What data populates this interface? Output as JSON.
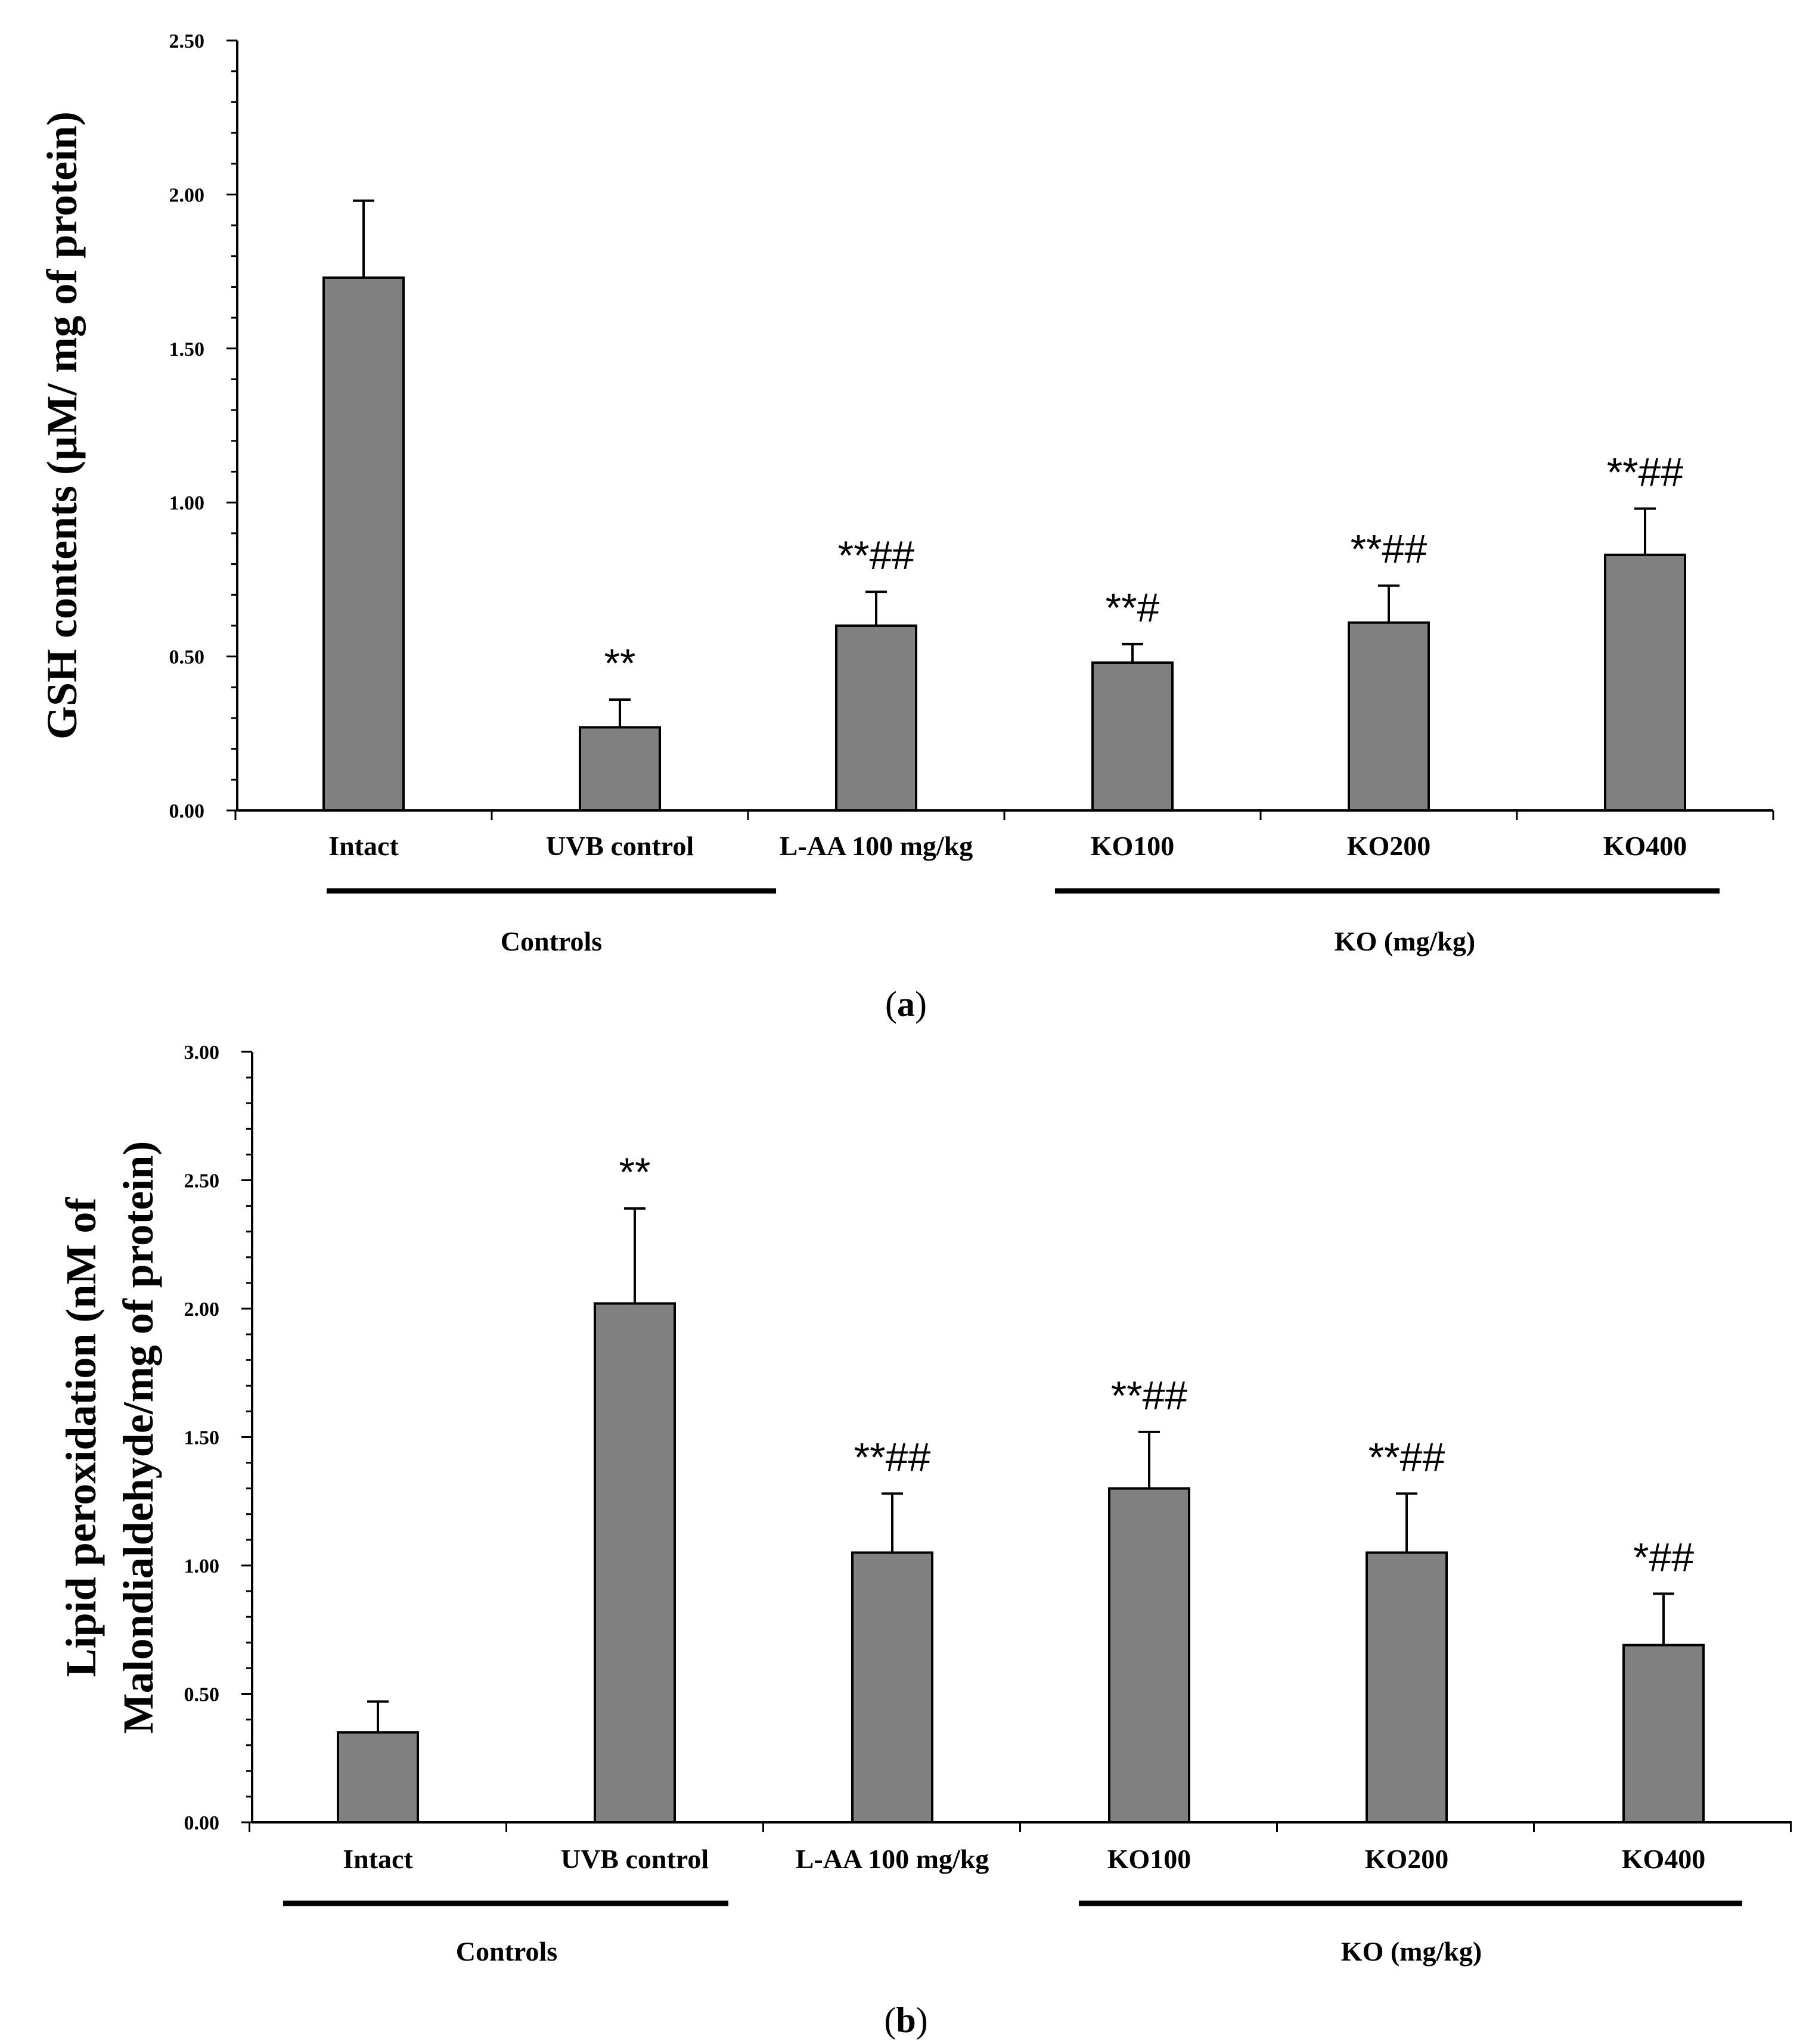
{
  "chart_data": [
    {
      "type": "bar",
      "panel_label": "a",
      "title": "",
      "ylabel": "GSH contents (µM/ mg of protein)",
      "ylabel_lines": [
        "GSH contents (µM/ mg of protein)"
      ],
      "xlabel": "",
      "ylim": [
        0,
        2.5
      ],
      "yticks": [
        "0.00",
        "0.50",
        "1.00",
        "1.50",
        "2.00",
        "2.50"
      ],
      "categories": [
        "Intact",
        "UVB control",
        "L-AA 100 mg/kg",
        "KO100",
        "KO200",
        "KO400"
      ],
      "values": [
        1.73,
        0.27,
        0.6,
        0.48,
        0.61,
        0.83
      ],
      "errors": [
        0.25,
        0.09,
        0.11,
        0.06,
        0.12,
        0.15
      ],
      "annotations": [
        "",
        "**",
        "**##",
        "**#",
        "**##",
        "**##"
      ],
      "groups": [
        {
          "label": "Controls",
          "from": 0,
          "to": 1
        },
        {
          "label": "KO (mg/kg)",
          "from": 3,
          "to": 5
        }
      ],
      "bar_color": "#808080"
    },
    {
      "type": "bar",
      "panel_label": "b",
      "title": "",
      "ylabel": "Lipid peroxidation (nM of Malondialdehyde/mg of protein)",
      "ylabel_lines": [
        "Lipid peroxidation (nM of",
        "Malondialdehyde/mg of protein)"
      ],
      "xlabel": "",
      "ylim": [
        0,
        3.0
      ],
      "yticks": [
        "0.00",
        "0.50",
        "1.00",
        "1.50",
        "2.00",
        "2.50",
        "3.00"
      ],
      "categories": [
        "Intact",
        "UVB control",
        "L-AA 100 mg/kg",
        "KO100",
        "KO200",
        "KO400"
      ],
      "values": [
        0.35,
        2.02,
        1.05,
        1.3,
        1.05,
        0.69
      ],
      "errors": [
        0.12,
        0.37,
        0.23,
        0.22,
        0.23,
        0.2
      ],
      "annotations": [
        "",
        "**",
        "**##",
        "**##",
        "**##",
        "*##"
      ],
      "groups": [
        {
          "label": "Controls",
          "from": 0,
          "to": 1
        },
        {
          "label": "KO (mg/kg)",
          "from": 3,
          "to": 5
        }
      ],
      "bar_color": "#808080"
    }
  ]
}
